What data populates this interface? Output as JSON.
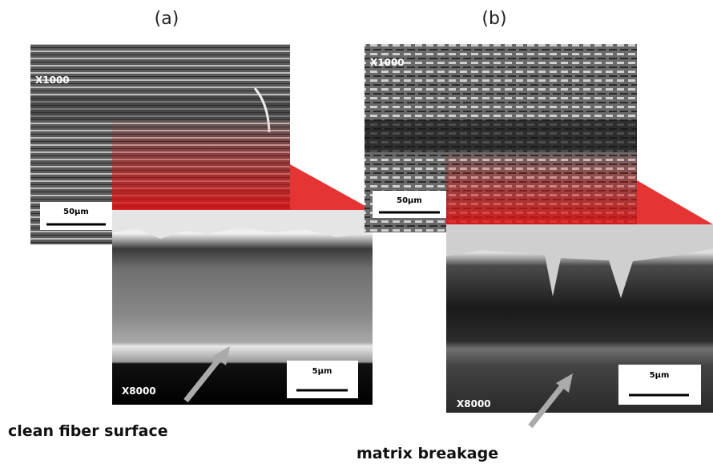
{
  "panels": [
    {
      "label": "(a)",
      "low_mag": "X1000",
      "low_scale": "50μm",
      "high_mag": "X8000",
      "high_scale": "5μm",
      "annotation": "clean fiber surface"
    },
    {
      "label": "(b)",
      "low_mag": "X1000",
      "low_scale": "50μm",
      "high_mag": "X8000",
      "high_scale": "5μm",
      "annotation": "matrix breakage"
    }
  ]
}
